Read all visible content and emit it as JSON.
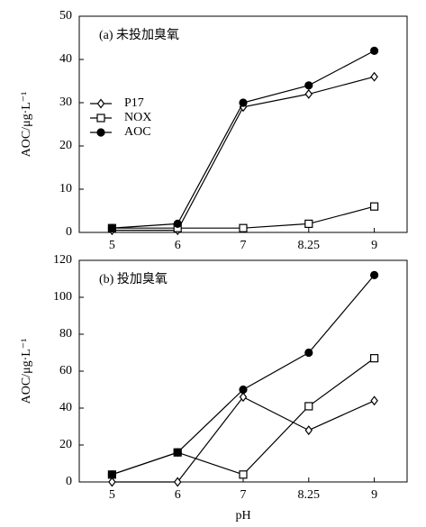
{
  "chart_data": [
    {
      "type": "line",
      "title": "(a) 未投加臭氧",
      "ylabel": "AOC/μg·L⁻¹",
      "categories": [
        "5",
        "6",
        "7",
        "8.25",
        "9"
      ],
      "ylim": [
        0,
        50
      ],
      "yticks": [
        0,
        10,
        20,
        30,
        40,
        50
      ],
      "legend": "left",
      "series": [
        {
          "name": "P17",
          "color": "#000000",
          "marker": "diamond",
          "marker_fill": "#ffffff",
          "values": [
            0.5,
            0.5,
            29,
            32,
            36
          ]
        },
        {
          "name": "NOX",
          "color": "#000000",
          "marker": "square",
          "marker_fill": "#ffffff",
          "values": [
            1,
            1,
            1,
            2,
            6
          ]
        },
        {
          "name": "AOC",
          "color": "#000000",
          "marker": "circle",
          "marker_fill": "#000000",
          "values": [
            1,
            2,
            30,
            34,
            42
          ]
        }
      ]
    },
    {
      "type": "line",
      "title": "(b) 投加臭氧",
      "ylabel": "AOC/μg·L⁻¹",
      "xlabel": "pH",
      "categories": [
        "5",
        "6",
        "7",
        "8.25",
        "9"
      ],
      "ylim": [
        0,
        120
      ],
      "yticks": [
        0,
        20,
        40,
        60,
        80,
        100,
        120
      ],
      "series": [
        {
          "name": "P17",
          "color": "#000000",
          "marker": "diamond",
          "marker_fill": "#ffffff",
          "values": [
            0,
            0,
            46,
            28,
            44
          ]
        },
        {
          "name": "NOX",
          "color": "#000000",
          "marker": "square",
          "marker_fill": "#ffffff",
          "values": [
            4,
            16,
            4,
            41,
            67
          ]
        },
        {
          "name": "AOC",
          "color": "#000000",
          "marker": "circle",
          "marker_fill": "#000000",
          "values": [
            4,
            16,
            50,
            70,
            112
          ]
        }
      ]
    }
  ]
}
